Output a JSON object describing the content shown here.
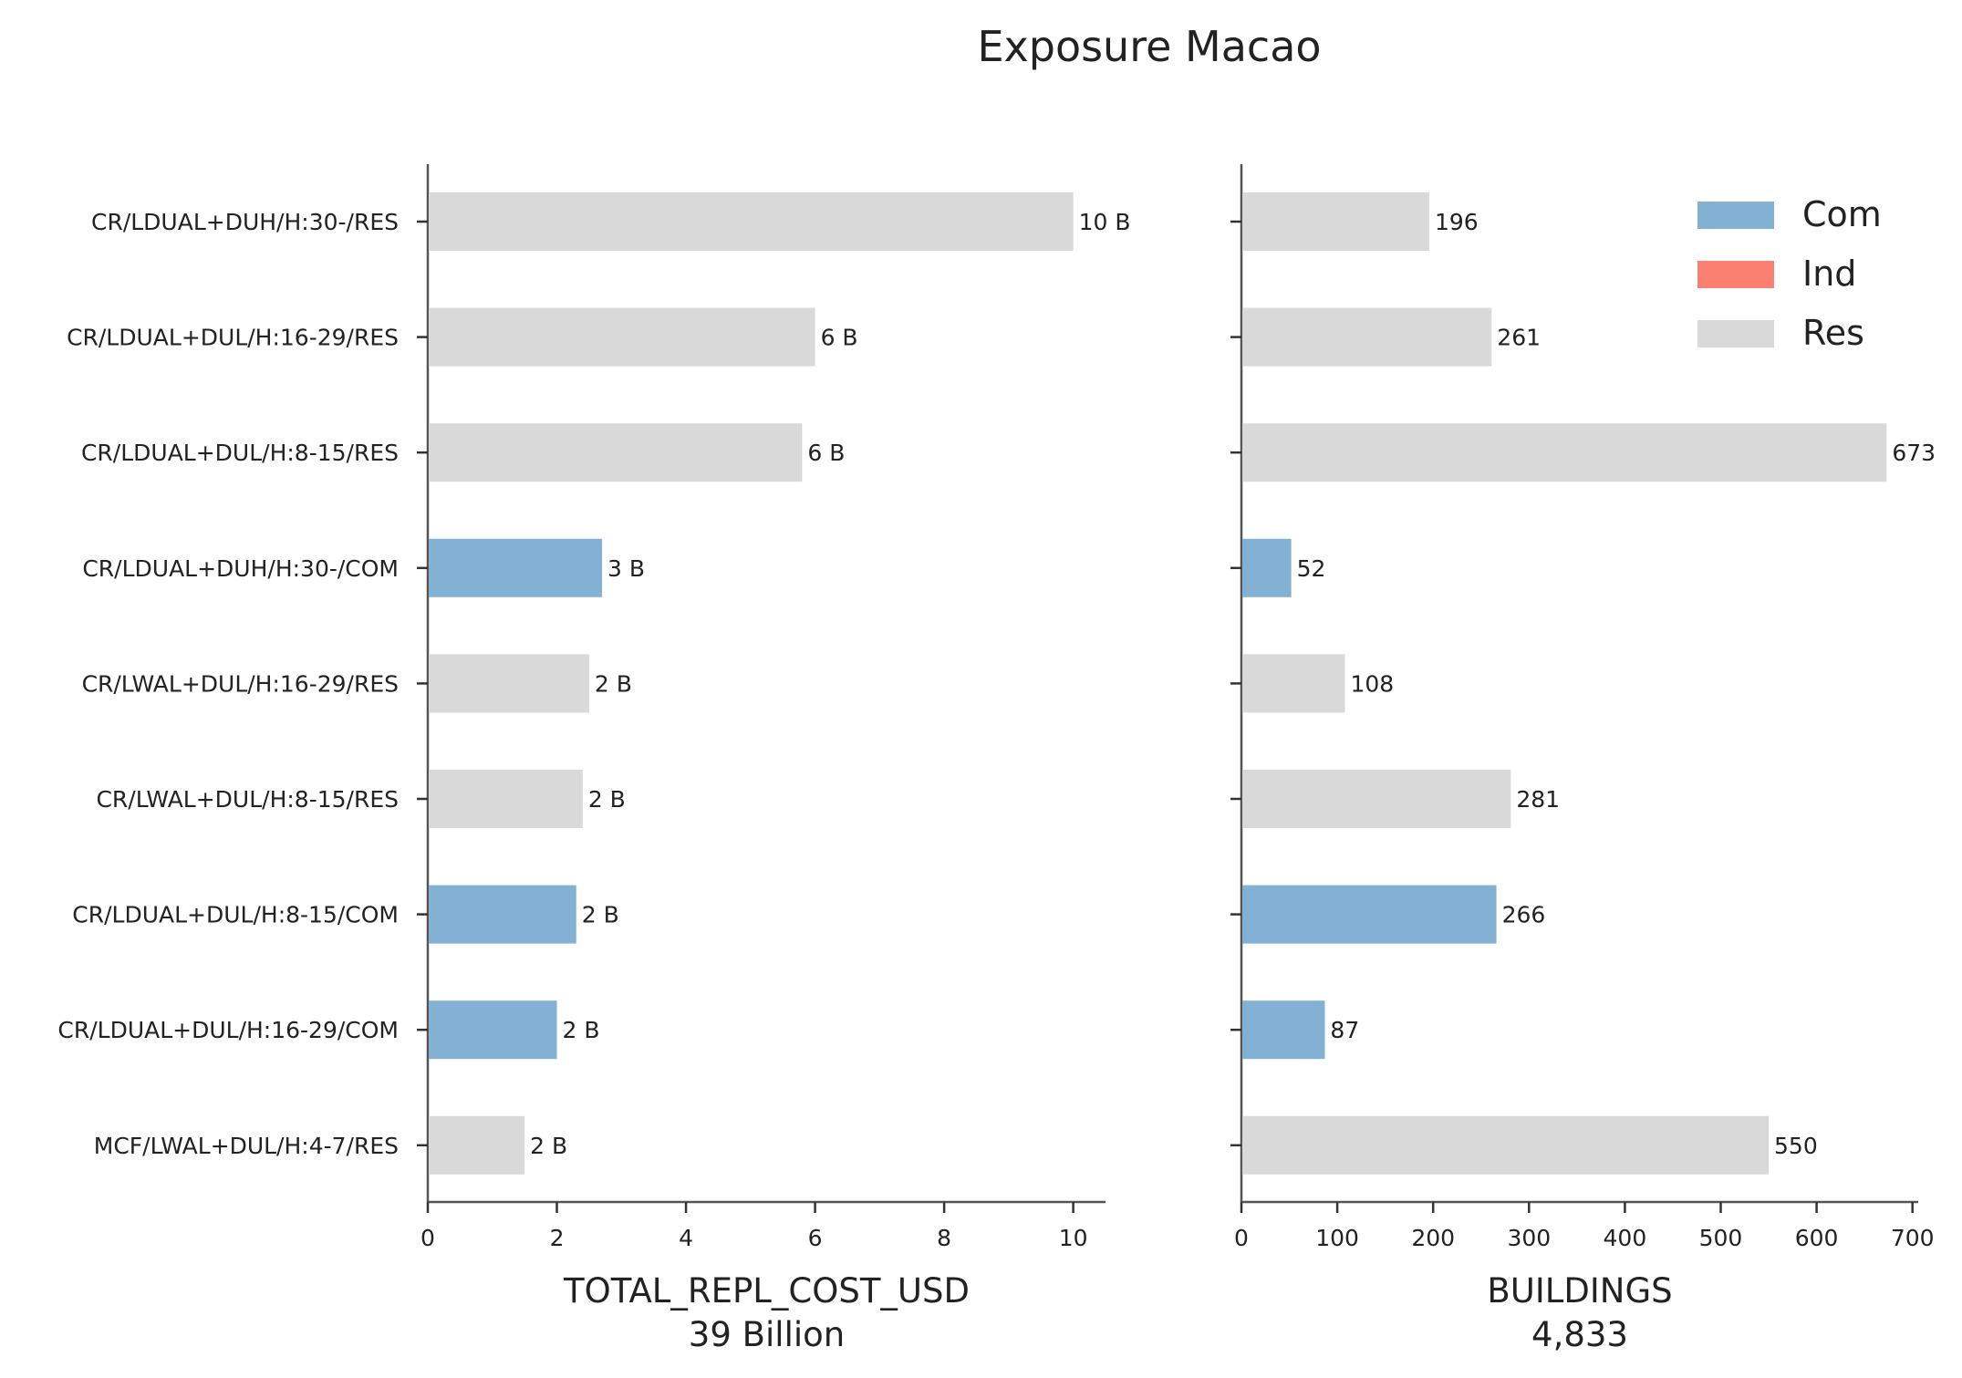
{
  "title": "Exposure Macao",
  "colors": {
    "Com": "#82b1d3",
    "Ind": "#fb8072",
    "Res": "#d9d9d9"
  },
  "legend": [
    "Com",
    "Ind",
    "Res"
  ],
  "chart_data": [
    {
      "type": "bar",
      "orientation": "horizontal",
      "categories": [
        "CR/LDUAL+DUH/H:30-/RES",
        "CR/LDUAL+DUL/H:16-29/RES",
        "CR/LDUAL+DUL/H:8-15/RES",
        "CR/LDUAL+DUH/H:30-/COM",
        "CR/LWAL+DUL/H:16-29/RES",
        "CR/LWAL+DUL/H:8-15/RES",
        "CR/LDUAL+DUL/H:8-15/COM",
        "CR/LDUAL+DUL/H:16-29/COM",
        "MCF/LWAL+DUL/H:4-7/RES"
      ],
      "occupancy": [
        "Res",
        "Res",
        "Res",
        "Com",
        "Res",
        "Res",
        "Com",
        "Com",
        "Res"
      ],
      "values": [
        10.0,
        6.0,
        5.8,
        2.7,
        2.5,
        2.4,
        2.3,
        2.0,
        1.5
      ],
      "data_labels": [
        "10 B",
        "6 B",
        "6 B",
        "3 B",
        "2 B",
        "2 B",
        "2 B",
        "2 B",
        "2 B"
      ],
      "xlabel": "TOTAL_REPL_COST_USD",
      "xlabel_total": "39 Billion",
      "xlim": [
        0,
        10.5
      ],
      "xticks": [
        0,
        2,
        4,
        6,
        8,
        10
      ]
    },
    {
      "type": "bar",
      "orientation": "horizontal",
      "categories": [
        "CR/LDUAL+DUH/H:30-/RES",
        "CR/LDUAL+DUL/H:16-29/RES",
        "CR/LDUAL+DUL/H:8-15/RES",
        "CR/LDUAL+DUH/H:30-/COM",
        "CR/LWAL+DUL/H:16-29/RES",
        "CR/LWAL+DUL/H:8-15/RES",
        "CR/LDUAL+DUL/H:8-15/COM",
        "CR/LDUAL+DUL/H:16-29/COM",
        "MCF/LWAL+DUL/H:4-7/RES"
      ],
      "occupancy": [
        "Res",
        "Res",
        "Res",
        "Com",
        "Res",
        "Res",
        "Com",
        "Com",
        "Res"
      ],
      "values": [
        196,
        261,
        673,
        52,
        108,
        281,
        266,
        87,
        550
      ],
      "data_labels": [
        "196",
        "261",
        "673",
        "52",
        "108",
        "281",
        "266",
        "87",
        "550"
      ],
      "xlabel": "BUILDINGS",
      "xlabel_total": "4,833",
      "xlim": [
        0,
        706
      ],
      "xticks": [
        0,
        100,
        200,
        300,
        400,
        500,
        600,
        700
      ]
    }
  ]
}
